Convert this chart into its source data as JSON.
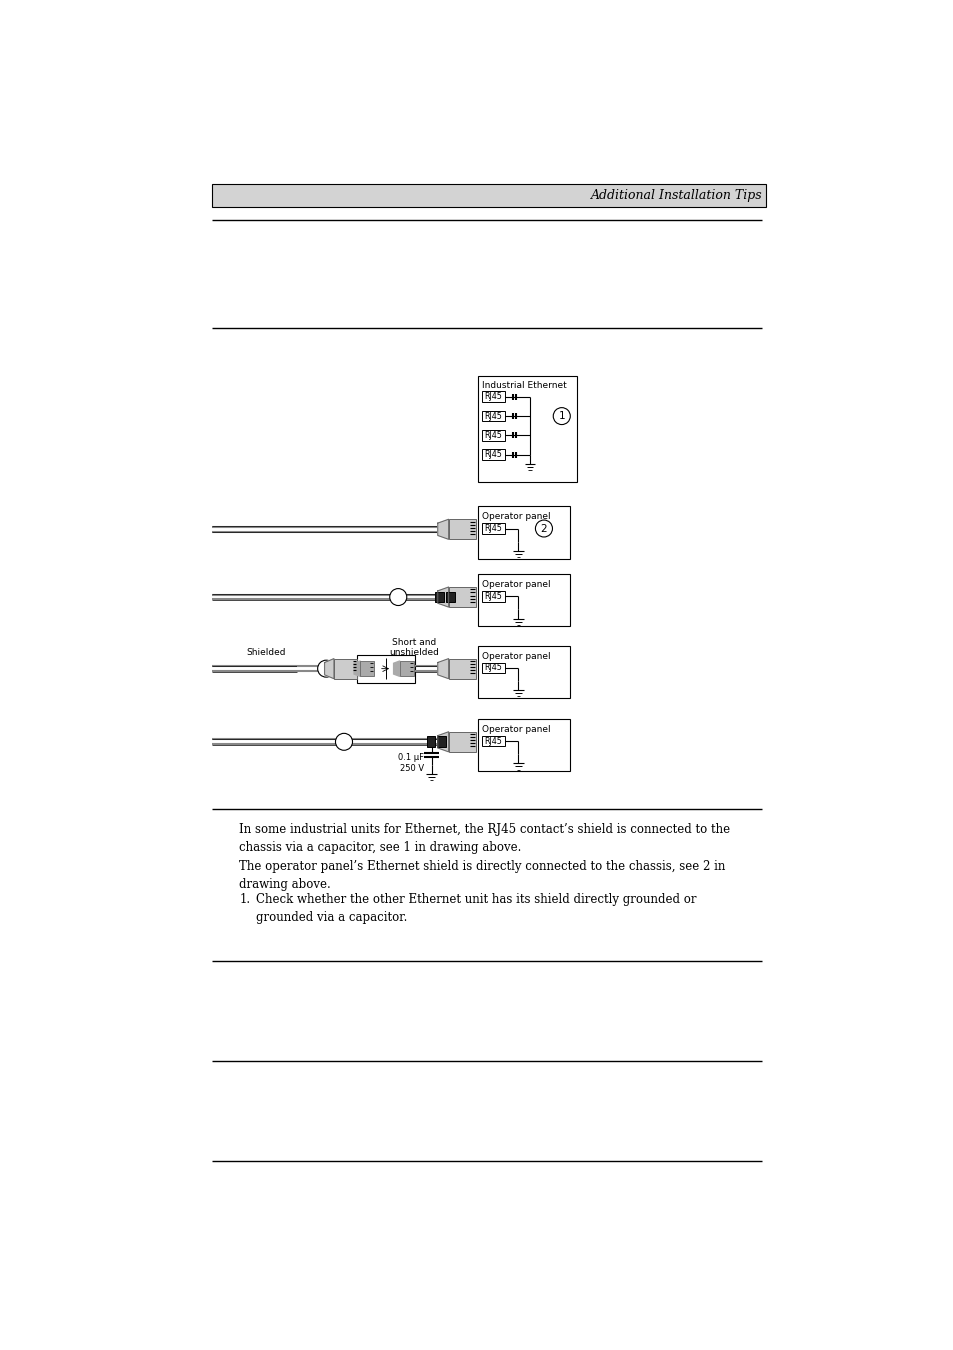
{
  "page_title": "Additional Installation Tips",
  "header_bg": "#d3d3d3",
  "line_color": "#000000",
  "box_color": "#ffffff",
  "text_color": "#000000",
  "para1": "In some industrial units for Ethernet, the RJ45 contact’s shield is connected to the\nchassis via a capacitor, see 1 in drawing above.",
  "para2": "The operator panel’s Ethernet shield is directly connected to the chassis, see 2 in\ndrawing above.",
  "list_item1": "Check whether the other Ethernet unit has its shield directly grounded or\ngrounded via a capacitor.",
  "ie_box_label": "Industrial Ethernet",
  "op_label": "Operator panel",
  "rj45_label": "RJ45",
  "shielded_label": "Shielded",
  "short_unshielded_label": "Short and\nunshielded",
  "cap_label": "0.1 μF\n250 V"
}
